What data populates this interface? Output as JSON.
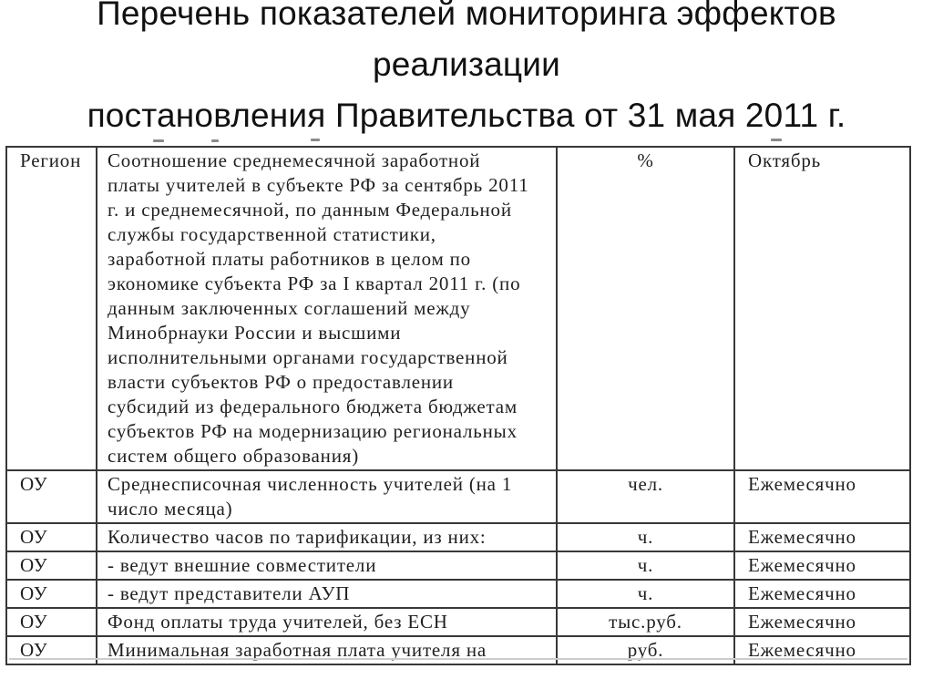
{
  "slide": {
    "title_lines": [
      "Перечень показателей мониторинга эффектов",
      "реализации",
      "постановления Правительства от 31 мая 2011 г."
    ]
  },
  "table": {
    "rows": [
      {
        "region": "Регион",
        "indicator": "Соотношение среднемесячной заработной платы учителей в субъекте РФ за сентябрь 2011 г. и среднемесячной, по данным Федеральной службы государственной статистики, заработной платы работников в целом по экономике субъекта РФ за I квартал 2011 г. (по данным заключенных соглашений между Минобрнауки России и высшими исполнительными органами государственной власти субъектов РФ о предоставлении субсидий из федерального бюджета бюджетам субъектов РФ на модернизацию региональных систем общего образования)",
        "unit": "%",
        "period": "Октябрь"
      },
      {
        "region": "ОУ",
        "indicator": "Среднесписочная численность учителей (на 1 число месяца)",
        "unit": "чел.",
        "period": "Ежемесячно"
      },
      {
        "region": "ОУ",
        "indicator": "Количество часов по тарификации, из них:",
        "unit": "ч.",
        "period": "Ежемесячно"
      },
      {
        "region": "ОУ",
        "indicator": "- ведут внешние совместители",
        "unit": "ч.",
        "period": "Ежемесячно"
      },
      {
        "region": "ОУ",
        "indicator": "- ведут представители АУП",
        "unit": "ч.",
        "period": "Ежемесячно"
      },
      {
        "region": "ОУ",
        "indicator": "Фонд оплаты труда учителей, без ЕСН",
        "unit": "тыс.руб.",
        "period": "Ежемесячно"
      },
      {
        "region": "ОУ",
        "indicator": "Минимальная заработная плата учителя на",
        "unit": "руб.",
        "period": "Ежемесячно"
      }
    ]
  },
  "colors": {
    "background": "#ffffff",
    "title_text": "#111111",
    "table_text": "#1f1f1f",
    "table_border": "#383838"
  }
}
